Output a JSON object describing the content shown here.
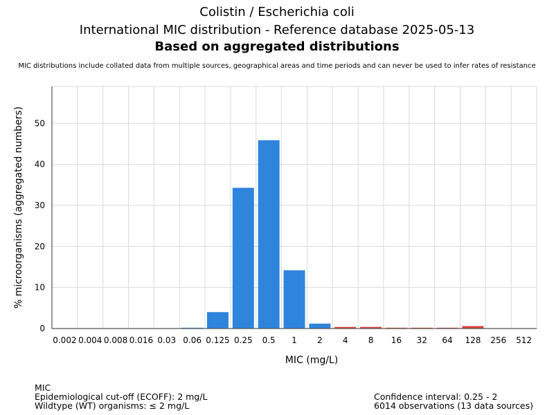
{
  "header": {
    "title": "Colistin / Escherichia coli",
    "subtitle": "International MIC distribution - Reference database 2025-05-13",
    "subtitle2": "Based on aggregated distributions",
    "note": "MIC distributions include collated data from multiple sources, geographical areas and time periods and can never be used to infer rates of resistance"
  },
  "footer": {
    "left": [
      "MIC",
      "Epidemiological cut-off (ECOFF): 2 mg/L",
      "Wildtype (WT) organisms: ≤ 2 mg/L"
    ],
    "right": [
      "Confidence interval: 0.25 - 2",
      "6014 observations (13 data sources)"
    ]
  },
  "chart_data": {
    "type": "bar",
    "xlabel": "MIC (mg/L)",
    "ylabel": "% microorganisms (aggregated numbers)",
    "ylim": [
      0,
      59
    ],
    "yticks": [
      0,
      10,
      20,
      30,
      40,
      50
    ],
    "grid": true,
    "categories": [
      "0.002",
      "0.004",
      "0.008",
      "0.016",
      "0.03",
      "0.06",
      "0.125",
      "0.25",
      "0.5",
      "1",
      "2",
      "4",
      "8",
      "16",
      "32",
      "64",
      "128",
      "256",
      "512"
    ],
    "values": [
      0,
      0,
      0,
      0,
      0,
      0.2,
      4.0,
      34.3,
      45.9,
      14.2,
      1.2,
      0.4,
      0.4,
      0.2,
      0.2,
      0.2,
      0.6,
      0,
      0
    ],
    "colors": {
      "wildtype": "#2f84dc",
      "nonwildtype": "#d9413d",
      "grid": "#d9d9d9",
      "axis": "#555555"
    },
    "ecoff_category": "2"
  }
}
